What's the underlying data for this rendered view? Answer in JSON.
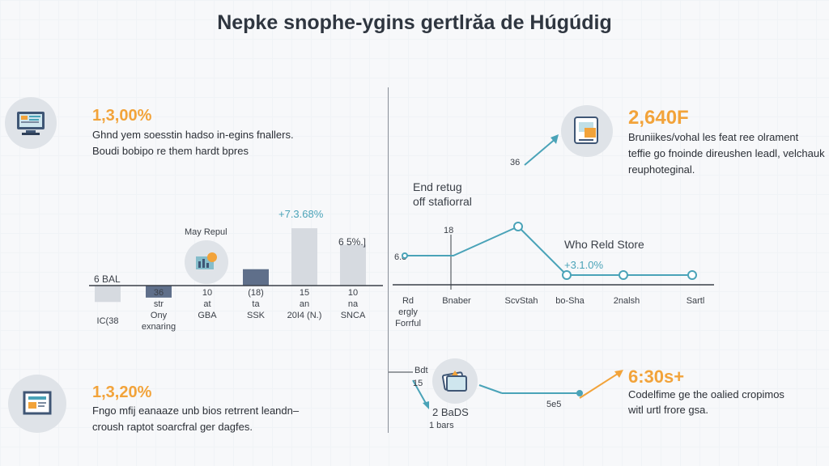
{
  "title": "Nepke snophe-ygins gertlrăa de Húgúdig",
  "stats": {
    "top_left": {
      "value": "1,3,00%",
      "lines": [
        "Ghnd yem soesstin hadso in-egins fnallers.",
        "Boudi bobipo re them hardt bpres"
      ]
    },
    "top_right": {
      "value": "2,640F",
      "lines": [
        "Bruniikes/vohal les feat ree olrament",
        "teffie go fnoinde direushen leadl, velchauk",
        "reuphoteginal."
      ]
    },
    "bottom_left": {
      "value": "1,3,20%",
      "lines": [
        "Fngo mfij eanaaze unb bios retrrent leandn–",
        "croush raptot soarcfral ger dagfes."
      ]
    },
    "bottom_right": {
      "value": "6:30s+",
      "lines": [
        "Codelfime ge the oalied cropimos",
        "witl urtl frore gsa."
      ]
    }
  },
  "colors": {
    "accent": "#f2a33a",
    "teal": "#4aa3b8",
    "bar_dark": "#5f6f8a",
    "bar_light": "#d6dae0"
  },
  "icons": [
    "monitor-icon",
    "document-icon",
    "gear-icon",
    "report-icon",
    "cards-icon"
  ],
  "chart_data": [
    {
      "type": "bar",
      "title": "",
      "categories": [
        "IC(38",
        "Ony exnaring",
        "GBA",
        "SSK",
        "20I4 (N.)",
        "SNCA"
      ],
      "tick_sublabels": [
        "",
        "36\nstr",
        "10\nat",
        "(18)\nta",
        "15\nan",
        "10\nna"
      ],
      "values": [
        30,
        22,
        12,
        30,
        105,
        75
      ],
      "bar_styles": [
        "light",
        "dark",
        "none",
        "dark",
        "light",
        "light"
      ],
      "ylim": [
        0,
        120
      ],
      "annotations": {
        "baseline_label": "6 BAL",
        "icon_label": "May Repul",
        "peak_label": "+7.3.68%",
        "second_label": "6 5%.]"
      }
    },
    {
      "type": "line",
      "title": "",
      "header": "End retug\noff stafiorral",
      "x": [
        "Rd\nergly\nForrful",
        "Bnaber",
        "ScvStah",
        "bo-Sha",
        "2nalsh",
        "Sartl"
      ],
      "y": [
        60,
        60,
        120,
        20,
        20,
        20
      ],
      "ylim": [
        0,
        140
      ],
      "annotations": {
        "left_label": "6.8",
        "marker_label": "18",
        "series_label": "Who Reld Store",
        "pct_label": "+3.1.0%",
        "arrow_label": "36"
      }
    },
    {
      "type": "line",
      "title": "",
      "labels": {
        "top": "Bdt",
        "mid": "15",
        "count": "2 BaDS",
        "sub": "1 bars",
        "axis": "5e5"
      }
    }
  ]
}
